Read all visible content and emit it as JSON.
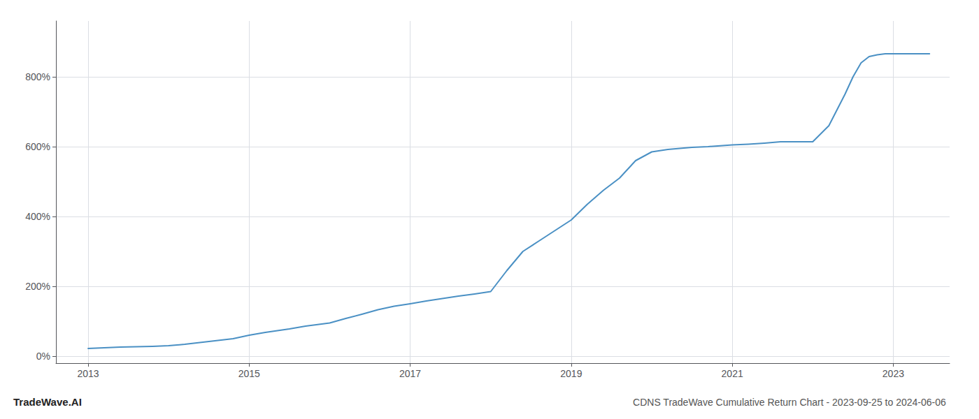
{
  "chart_data": {
    "type": "line",
    "title": "CDNS TradeWave Cumulative Return Chart - 2023-09-25 to 2024-06-06",
    "annotations": [
      "TradeWave.AI"
    ],
    "color": "#4a90c4",
    "grid": true,
    "x": [
      2013.0,
      2013.1,
      2013.2,
      2013.4,
      2013.6,
      2013.8,
      2014.0,
      2014.2,
      2014.5,
      2014.8,
      2015.0,
      2015.2,
      2015.5,
      2015.7,
      2016.0,
      2016.2,
      2016.4,
      2016.6,
      2016.8,
      2017.0,
      2017.2,
      2017.4,
      2017.6,
      2017.8,
      2018.0,
      2018.2,
      2018.4,
      2018.6,
      2018.8,
      2019.0,
      2019.2,
      2019.4,
      2019.6,
      2019.8,
      2020.0,
      2020.2,
      2020.5,
      2020.7,
      2021.0,
      2021.2,
      2021.4,
      2021.5,
      2021.6,
      2021.8,
      2022.0,
      2022.2,
      2022.4,
      2022.5,
      2022.6,
      2022.7,
      2022.8,
      2022.9,
      2023.0,
      2023.1,
      2023.2,
      2023.45
    ],
    "values": [
      22,
      23,
      24,
      26,
      27,
      28,
      30,
      34,
      42,
      50,
      60,
      68,
      78,
      86,
      95,
      108,
      120,
      133,
      143,
      150,
      158,
      165,
      172,
      178,
      185,
      245,
      300,
      330,
      360,
      390,
      435,
      475,
      510,
      560,
      585,
      592,
      598,
      600,
      605,
      607,
      610,
      612,
      614,
      614,
      614,
      660,
      750,
      800,
      840,
      858,
      863,
      866,
      866,
      866,
      866,
      866
    ],
    "xlim": [
      2012.6,
      2023.7
    ],
    "xticks": [
      2013,
      2015,
      2017,
      2019,
      2021,
      2023
    ],
    "ylim": [
      -20,
      960
    ],
    "yticks": [
      {
        "value": 0,
        "label": "0%"
      },
      {
        "value": 200,
        "label": "200%"
      },
      {
        "value": 400,
        "label": "400%"
      },
      {
        "value": 600,
        "label": "600%"
      },
      {
        "value": 800,
        "label": "800%"
      }
    ]
  }
}
